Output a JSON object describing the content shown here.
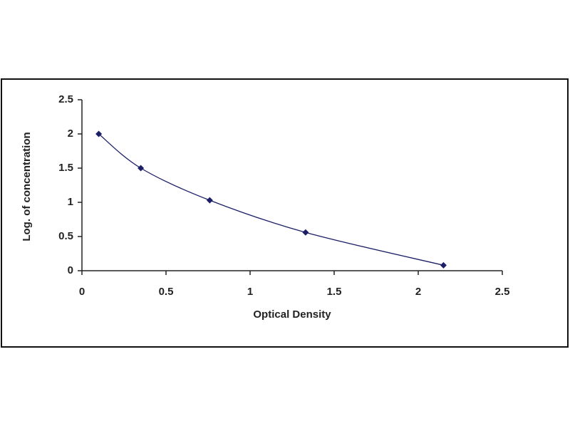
{
  "chart_data": {
    "type": "line",
    "markers": true,
    "smooth": true,
    "x_label": "Optical Density",
    "y_label": "Log. of concentration",
    "x": [
      0.1,
      0.35,
      0.76,
      1.33,
      2.15
    ],
    "series": [
      {
        "color": "#1c1f66",
        "values": [
          2.0,
          1.5,
          1.03,
          0.56,
          0.08
        ]
      }
    ],
    "xlim": [
      0,
      2.5
    ],
    "xticks": [
      0,
      0.5,
      1,
      1.5,
      2,
      2.5
    ],
    "ylim": [
      0,
      2.5
    ],
    "yticks": [
      0,
      0.5,
      1,
      1.5,
      2,
      2.5
    ],
    "grid": false
  }
}
